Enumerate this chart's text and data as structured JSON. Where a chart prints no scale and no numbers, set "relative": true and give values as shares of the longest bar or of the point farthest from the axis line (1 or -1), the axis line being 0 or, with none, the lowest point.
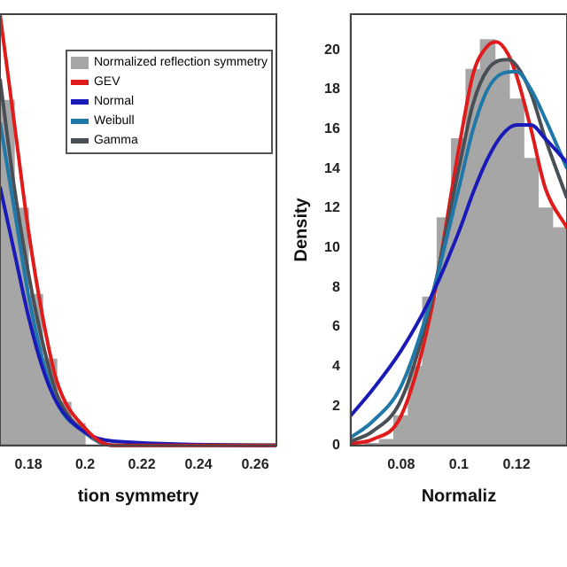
{
  "chart_data": [
    {
      "type": "line",
      "xlabel": "tion symmetry",
      "relative": true,
      "tick_labels": "x",
      "legend": "top right",
      "marker": "none",
      "xlim": [
        0.17,
        0.2675
      ],
      "xticks": [
        0.18,
        0.2,
        0.22,
        0.24,
        0.26
      ],
      "series": [
        {
          "type": "histogram",
          "name": "Normalized reflection symmetry",
          "color": "#a6a6a6",
          "bins": [
            0.17,
            0.175,
            0.18,
            0.185,
            0.19,
            0.195,
            0.2
          ],
          "values": [
            0.8,
            0.55,
            0.35,
            0.2,
            0.1,
            0.05
          ]
        },
        {
          "name": "GEV",
          "color": "#e01b1b",
          "x": [
            0.17,
            0.175,
            0.18,
            0.185,
            0.19,
            0.2,
            0.21,
            0.2675
          ],
          "values": [
            1,
            0.75,
            0.5,
            0.3,
            0.15,
            0.04,
            0,
            0
          ]
        },
        {
          "name": "Normal",
          "color": "#1a1ab8",
          "x": [
            0.17,
            0.175,
            0.18,
            0.185,
            0.19,
            0.2,
            0.21,
            0.2675
          ],
          "values": [
            0.6,
            0.45,
            0.3,
            0.18,
            0.1,
            0.03,
            0.01,
            0
          ]
        },
        {
          "name": "Weibull",
          "color": "#1f78a8",
          "x": [
            0.17,
            0.175,
            0.18,
            0.185,
            0.19,
            0.2,
            0.21,
            0.2675
          ],
          "values": [
            0.75,
            0.55,
            0.35,
            0.2,
            0.1,
            0.03,
            0,
            0
          ]
        },
        {
          "name": "Gamma",
          "color": "#4a4f55",
          "x": [
            0.17,
            0.175,
            0.18,
            0.185,
            0.19,
            0.2,
            0.21,
            0.2675
          ],
          "values": [
            0.85,
            0.6,
            0.4,
            0.24,
            0.12,
            0.03,
            0,
            0
          ]
        }
      ]
    },
    {
      "type": "line",
      "xlabel": "Normaliz",
      "ylabel": "Density",
      "legend": false,
      "marker": "none",
      "xlim": [
        0.0625,
        0.1375
      ],
      "xticks": [
        0.08,
        0.1,
        0.12
      ],
      "ylim": [
        0,
        21.8
      ],
      "yticks": [
        0,
        2,
        4,
        6,
        8,
        10,
        12,
        14,
        16,
        18,
        20
      ],
      "series": [
        {
          "type": "histogram",
          "color": "#a6a6a6",
          "bins": [
            0.0625,
            0.0675,
            0.0725,
            0.0775,
            0.0825,
            0.0875,
            0.0925,
            0.0975,
            0.1025,
            0.1075,
            0.1125,
            0.1175,
            0.1225,
            0.1275,
            0.1325,
            0.1375
          ],
          "values": [
            0,
            0.1,
            0.3,
            1.5,
            4,
            7.5,
            11.5,
            15.5,
            19,
            20.5,
            19.5,
            17.5,
            14.5,
            12,
            11
          ]
        },
        {
          "color": "#1a1ab8",
          "x": [
            0.0625,
            0.07,
            0.08,
            0.09,
            0.1,
            0.105,
            0.11,
            0.115,
            0.12,
            0.125,
            0.13,
            0.1375
          ],
          "values": [
            1.5,
            2.8,
            4.8,
            7.4,
            10.8,
            12.8,
            14.5,
            15.7,
            16.2,
            16.2,
            15.5,
            14.3
          ]
        },
        {
          "color": "#1f78a8",
          "x": [
            0.0625,
            0.07,
            0.08,
            0.09,
            0.1,
            0.105,
            0.11,
            0.115,
            0.12,
            0.125,
            0.13,
            0.1375
          ],
          "values": [
            0.4,
            1.2,
            3,
            7.2,
            13,
            16,
            18,
            18.8,
            18.9,
            18,
            16.5,
            14
          ]
        },
        {
          "color": "#4a4f55",
          "x": [
            0.0625,
            0.07,
            0.08,
            0.09,
            0.1,
            0.105,
            0.11,
            0.117,
            0.12,
            0.125,
            0.13,
            0.1375
          ],
          "values": [
            0.2,
            0.7,
            2.3,
            7,
            14,
            17.3,
            19,
            19.5,
            19.2,
            17.8,
            15.5,
            12.5
          ]
        },
        {
          "color": "#e01b1b",
          "x": [
            0.0625,
            0.07,
            0.08,
            0.09,
            0.1,
            0.105,
            0.11,
            0.113,
            0.117,
            0.12,
            0.125,
            0.13,
            0.1375
          ],
          "values": [
            0.1,
            0.3,
            1.5,
            6.5,
            15,
            18.8,
            20.2,
            20.4,
            19.8,
            18.7,
            16,
            13,
            11
          ]
        }
      ]
    }
  ]
}
